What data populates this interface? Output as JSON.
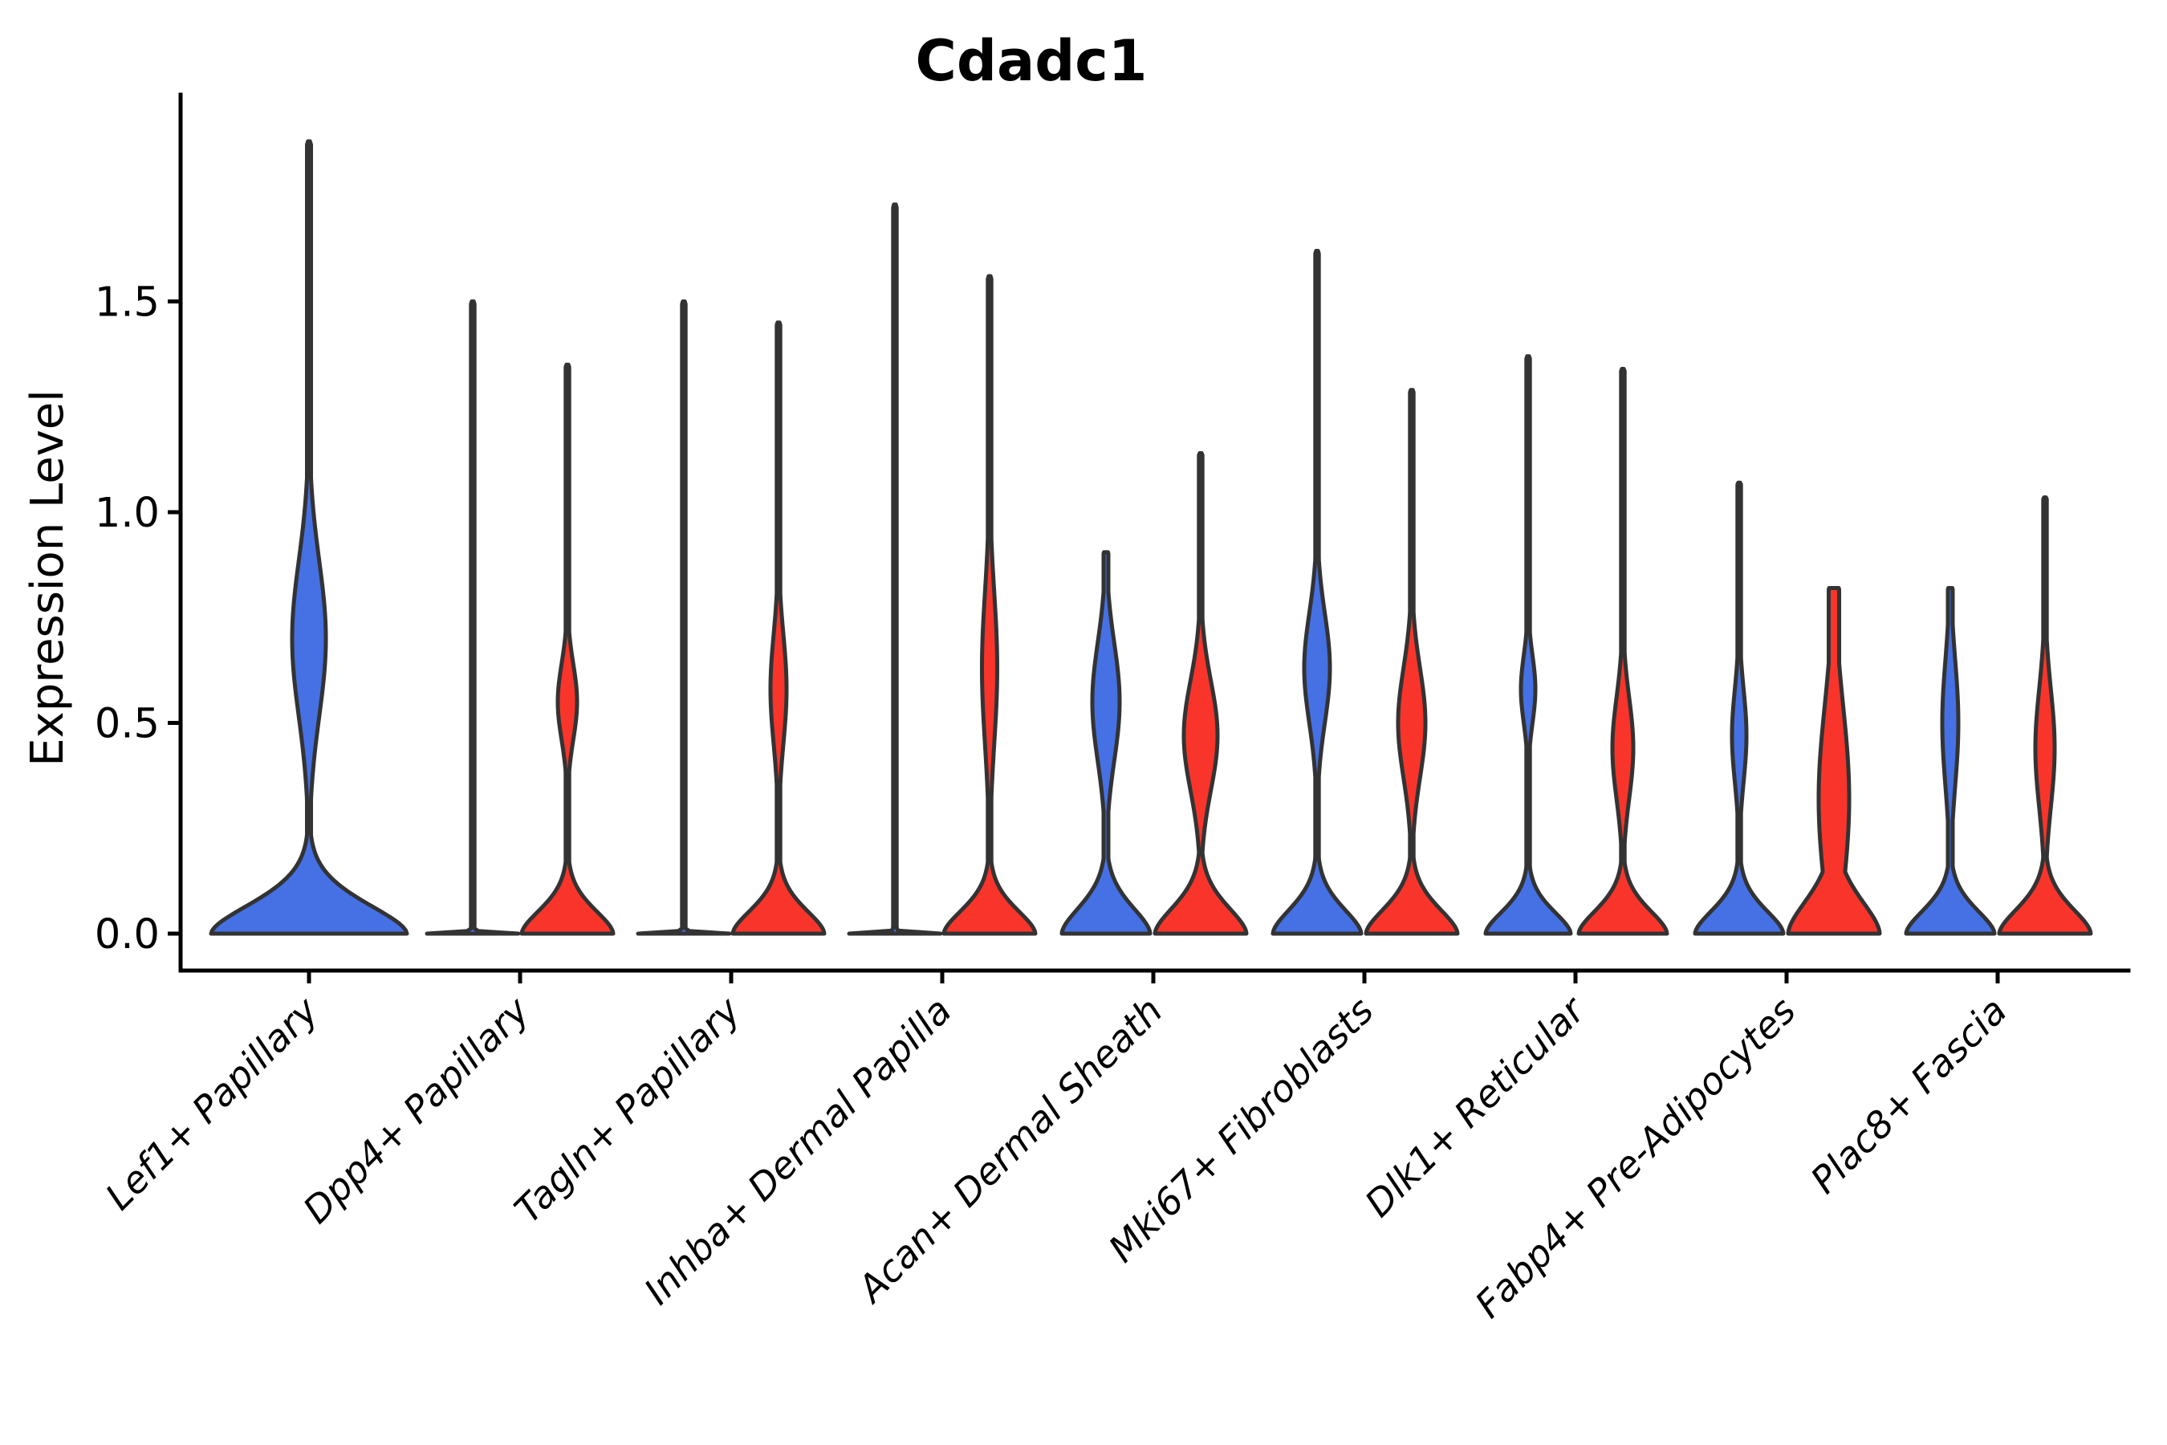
{
  "header": {
    "title": "Cdadc1"
  },
  "axes": {
    "ylabel": "Expression Level",
    "ytick_labels": [
      "0.0",
      "0.5",
      "1.0",
      "1.5"
    ]
  },
  "colors": {
    "blue_fill": "#4571E4",
    "red_fill": "#F9352B",
    "outline": "#333333",
    "axis": "#000000",
    "background": "#ffffff"
  },
  "chart_data": {
    "type": "violin",
    "title": "Cdadc1",
    "xlabel": "",
    "ylabel": "Expression Level",
    "ylim": [
      -0.09,
      1.99
    ],
    "ytick_values": [
      0.0,
      0.5,
      1.0,
      1.5
    ],
    "grid": false,
    "legend": null,
    "split_groups": [
      {
        "name": "blue",
        "color": "#4571E4"
      },
      {
        "name": "red",
        "color": "#F9352B"
      }
    ],
    "categories": [
      "Lef1+ Papillary",
      "Dpp4+ Papillary",
      "Tagln+ Papillary",
      "Inhba+ Dermal Papilla",
      "Acan+ Dermal Sheath",
      "Mki67+ Fibroblasts",
      "Dlk1+ Reticular",
      "Fabp4+ Pre-Adipocytes",
      "Plac8+ Fascia"
    ],
    "violins": [
      {
        "category": "Lef1+ Papillary",
        "cat_index": 0,
        "group": "blue",
        "side": "center",
        "max": 1.88,
        "collapsed": false,
        "base_hw": 122,
        "flare": 0.105,
        "bulge": [
          0.7,
          21,
          0.185
        ],
        "spike_hw": 2.5,
        "cap_hw": 1.2
      },
      {
        "category": "Dpp4+ Papillary",
        "cat_index": 1,
        "group": "blue",
        "side": "left",
        "max": 1.5,
        "collapsed": true,
        "base_hw": 57,
        "flare": 0.004,
        "bulge": null,
        "spike_hw": 2.2,
        "cap_hw": 1.2
      },
      {
        "category": "Dpp4+ Papillary",
        "cat_index": 1,
        "group": "red",
        "side": "right",
        "max": 1.35,
        "collapsed": false,
        "base_hw": 57,
        "flare": 0.085,
        "bulge": [
          0.55,
          12,
          0.09
        ],
        "spike_hw": 2.2,
        "cap_hw": 1.2
      },
      {
        "category": "Tagln+ Papillary",
        "cat_index": 2,
        "group": "blue",
        "side": "left",
        "max": 1.5,
        "collapsed": true,
        "base_hw": 57,
        "flare": 0.004,
        "bulge": null,
        "spike_hw": 2.2,
        "cap_hw": 1.2
      },
      {
        "category": "Tagln+ Papillary",
        "cat_index": 2,
        "group": "red",
        "side": "right",
        "max": 1.45,
        "collapsed": false,
        "base_hw": 57,
        "flare": 0.085,
        "bulge": [
          0.58,
          10,
          0.13
        ],
        "spike_hw": 2.2,
        "cap_hw": 1.2
      },
      {
        "category": "Inhba+ Dermal Papilla",
        "cat_index": 3,
        "group": "blue",
        "side": "left",
        "max": 1.73,
        "collapsed": true,
        "base_hw": 57,
        "flare": 0.004,
        "bulge": null,
        "spike_hw": 2.2,
        "cap_hw": 1.2
      },
      {
        "category": "Inhba+ Dermal Papilla",
        "cat_index": 3,
        "group": "red",
        "side": "right",
        "max": 1.56,
        "collapsed": false,
        "base_hw": 57,
        "flare": 0.085,
        "bulge": [
          0.63,
          9.5,
          0.18
        ],
        "spike_hw": 2.2,
        "cap_hw": 1.2
      },
      {
        "category": "Acan+ Dermal Sheath",
        "cat_index": 4,
        "group": "blue",
        "side": "left",
        "max": 0.905,
        "collapsed": false,
        "base_hw": 55,
        "flare": 0.095,
        "bulge": [
          0.55,
          17,
          0.14
        ],
        "spike_hw": 3.0,
        "cap_hw": 2.5
      },
      {
        "category": "Acan+ Dermal Sheath",
        "cat_index": 4,
        "group": "red",
        "side": "right",
        "max": 1.14,
        "collapsed": false,
        "base_hw": 57,
        "flare": 0.095,
        "bulge": [
          0.47,
          21,
          0.13
        ],
        "spike_hw": 2.2,
        "cap_hw": 1.2
      },
      {
        "category": "Mki67+ Fibroblasts",
        "cat_index": 5,
        "group": "blue",
        "side": "left",
        "max": 1.62,
        "collapsed": false,
        "base_hw": 55,
        "flare": 0.09,
        "bulge": [
          0.63,
          16,
          0.13
        ],
        "spike_hw": 2.2,
        "cap_hw": 1.2
      },
      {
        "category": "Mki67+ Fibroblasts",
        "cat_index": 5,
        "group": "red",
        "side": "right",
        "max": 1.29,
        "collapsed": false,
        "base_hw": 57,
        "flare": 0.09,
        "bulge": [
          0.5,
          17,
          0.13
        ],
        "spike_hw": 2.2,
        "cap_hw": 1.2
      },
      {
        "category": "Dlk1+ Reticular",
        "cat_index": 6,
        "group": "blue",
        "side": "left",
        "max": 1.37,
        "collapsed": false,
        "base_hw": 53,
        "flare": 0.08,
        "bulge": [
          0.58,
          9,
          0.08
        ],
        "spike_hw": 2.2,
        "cap_hw": 1.2
      },
      {
        "category": "Dlk1+ Reticular",
        "cat_index": 6,
        "group": "red",
        "side": "right",
        "max": 1.34,
        "collapsed": false,
        "base_hw": 55,
        "flare": 0.085,
        "bulge": [
          0.44,
          13,
          0.12
        ],
        "spike_hw": 2.2,
        "cap_hw": 1.2
      },
      {
        "category": "Fabp4+ Pre-Adipocytes",
        "cat_index": 7,
        "group": "blue",
        "side": "left",
        "max": 1.07,
        "collapsed": false,
        "base_hw": 55,
        "flare": 0.085,
        "bulge": [
          0.47,
          9,
          0.11
        ],
        "spike_hw": 2.2,
        "cap_hw": 1.2
      },
      {
        "category": "Fabp4+ Pre-Adipocytes",
        "cat_index": 7,
        "group": "red",
        "side": "right",
        "max": 0.82,
        "collapsed": false,
        "base_hw": 57,
        "flare": 0.12,
        "bulge": [
          0.32,
          19,
          0.22
        ],
        "spike_hw": 6.5,
        "cap_hw": 6.0
      },
      {
        "category": "Plac8+ Fascia",
        "cat_index": 8,
        "group": "blue",
        "side": "left",
        "max": 0.82,
        "collapsed": false,
        "base_hw": 55,
        "flare": 0.085,
        "bulge": [
          0.5,
          10,
          0.15
        ],
        "spike_hw": 3.0,
        "cap_hw": 2.5
      },
      {
        "category": "Plac8+ Fascia",
        "cat_index": 8,
        "group": "red",
        "side": "right",
        "max": 1.035,
        "collapsed": false,
        "base_hw": 57,
        "flare": 0.09,
        "bulge": [
          0.44,
          12,
          0.14
        ],
        "spike_hw": 2.2,
        "cap_hw": 1.2
      }
    ]
  }
}
